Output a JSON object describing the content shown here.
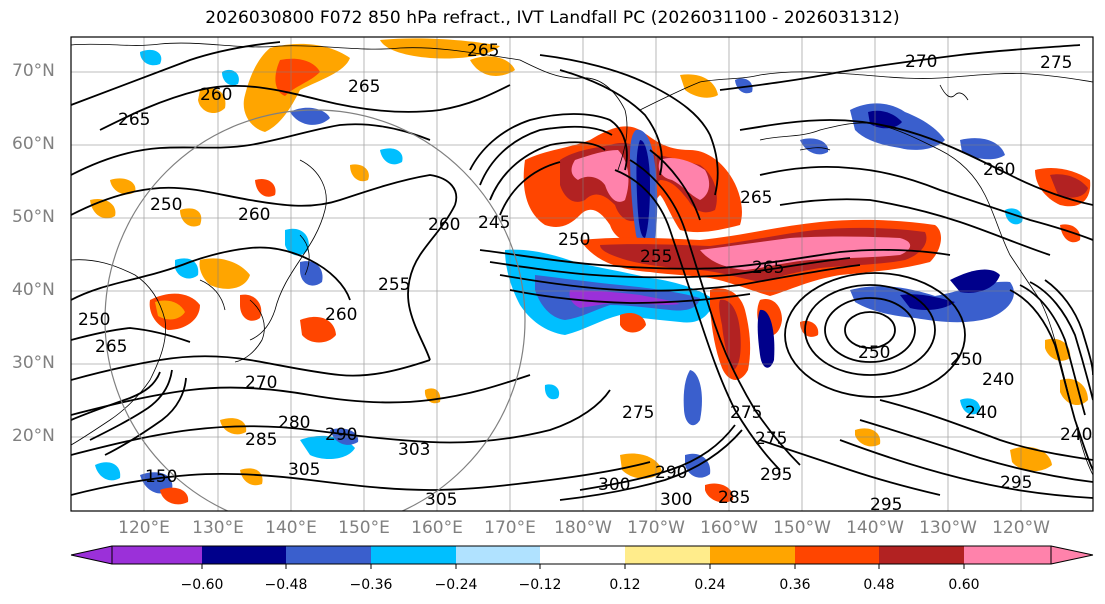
{
  "title": "2026030800 F072 850 hPa refract., IVT Landfall PC (2026031100 - 2026031312)",
  "lat_labels": [
    "70°N",
    "60°N",
    "50°N",
    "40°N",
    "30°N",
    "20°N"
  ],
  "lon_labels": [
    "120°E",
    "130°E",
    "140°E",
    "150°E",
    "160°E",
    "170°E",
    "180°W",
    "170°W",
    "160°W",
    "150°W",
    "140°W",
    "130°W",
    "120°W"
  ],
  "colorbar": {
    "colors": [
      "#9b30d9",
      "#00008b",
      "#3a5fcd",
      "#00bfff",
      "#b0e2ff",
      "#ffffff",
      "#ffec8b",
      "#ffa500",
      "#ff4500",
      "#b22222",
      "#ff82ab"
    ],
    "ticks": [
      "−0.60",
      "−0.48",
      "−0.36",
      "−0.24",
      "−0.12",
      "0.12",
      "0.24",
      "0.36",
      "0.48",
      "0.60"
    ]
  },
  "contour_labels": [
    "265",
    "270",
    "275",
    "260",
    "265",
    "265",
    "245",
    "255",
    "260",
    "260",
    "250",
    "250",
    "260",
    "255",
    "265",
    "265",
    "250",
    "265",
    "275",
    "275",
    "250",
    "250",
    "240",
    "240",
    "270",
    "280",
    "285",
    "290",
    "305",
    "303",
    "295",
    "300",
    "290",
    "300",
    "285",
    "295",
    "295",
    "305",
    "260",
    "150",
    "240",
    "275"
  ]
}
